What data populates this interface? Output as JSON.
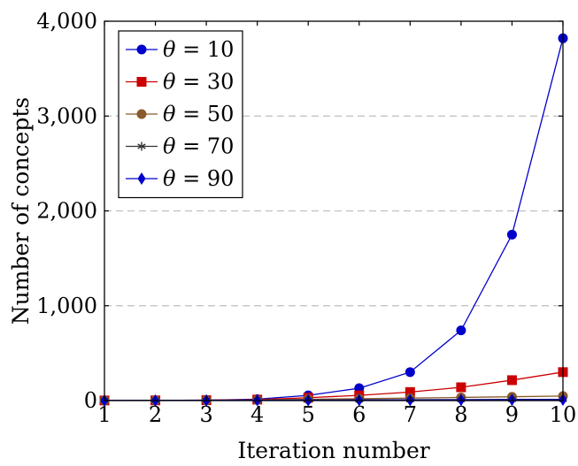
{
  "chart_data": {
    "type": "line",
    "title": "",
    "xlabel": "Iteration number",
    "ylabel": "Number of concepts",
    "xlim": [
      1,
      10
    ],
    "ylim": [
      0,
      4000
    ],
    "x_ticks": [
      "1",
      "2",
      "3",
      "4",
      "5",
      "6",
      "7",
      "8",
      "9",
      "10"
    ],
    "y_ticks": [
      "0",
      "1,000",
      "2,000",
      "3,000",
      "4,000"
    ],
    "grid": "horizontal dashed",
    "legend_position": "top-left",
    "x": [
      1,
      2,
      3,
      4,
      5,
      6,
      7,
      8,
      9,
      10
    ],
    "series": [
      {
        "name": "θ = 10",
        "name_parts": [
          "θ",
          " = 10"
        ],
        "color": "#0000cc",
        "marker": "circle",
        "values": [
          1,
          2,
          4,
          15,
          55,
          130,
          300,
          740,
          1750,
          3820
        ]
      },
      {
        "name": "θ = 30",
        "name_parts": [
          "θ",
          " = 30"
        ],
        "color": "#cc0000",
        "marker": "square",
        "values": [
          1,
          2,
          4,
          10,
          30,
          55,
          90,
          140,
          215,
          300
        ]
      },
      {
        "name": "θ = 50",
        "name_parts": [
          "θ",
          " = 50"
        ],
        "color": "#8b5a2b",
        "marker": "circle",
        "values": [
          1,
          2,
          3,
          7,
          14,
          20,
          26,
          33,
          40,
          48
        ]
      },
      {
        "name": "θ = 70",
        "name_parts": [
          "θ",
          " = 70"
        ],
        "color": "#333333",
        "marker": "star",
        "values": [
          1,
          2,
          3,
          4,
          6,
          8,
          9,
          10,
          12,
          13
        ]
      },
      {
        "name": "θ = 90",
        "name_parts": [
          "θ",
          " = 90"
        ],
        "color": "#0000cc",
        "marker": "diamond",
        "values": [
          1,
          1,
          2,
          3,
          4,
          5,
          6,
          7,
          8,
          9
        ]
      }
    ]
  }
}
